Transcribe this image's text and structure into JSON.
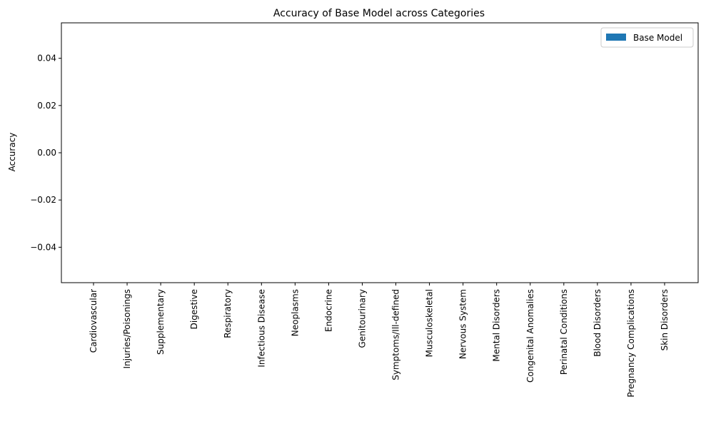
{
  "chart_data": {
    "type": "bar",
    "title": "Accuracy of Base Model across Categories",
    "xlabel": "",
    "ylabel": "Accuracy",
    "categories": [
      "Cardiovascular",
      "Injuries/Poisonings",
      "Supplementary",
      "Digestive",
      "Respiratory",
      "Infectious Disease",
      "Neoplasms",
      "Endocrine",
      "Genitourinary",
      "Symptoms/Ill-defined",
      "Musculoskeletal",
      "Nervous System",
      "Mental Disorders",
      "Congenital Anomalies",
      "Perinatal Conditions",
      "Blood Disorders",
      "Pregnancy Complications",
      "Skin Disorders"
    ],
    "series": [
      {
        "name": "Base Model",
        "color": "#1f77b4",
        "values": [
          0,
          0,
          0,
          0,
          0,
          0,
          0,
          0,
          0,
          0,
          0,
          0,
          0,
          0,
          0,
          0,
          0,
          0
        ]
      }
    ],
    "ylim": [
      -0.055,
      0.055
    ],
    "yticks": [
      -0.04,
      -0.02,
      0.0,
      0.02,
      0.04
    ],
    "ytick_labels": [
      "−0.04",
      "−0.02",
      "0.00",
      "0.02",
      "0.04"
    ],
    "grid": false,
    "legend_position": "top-right"
  }
}
